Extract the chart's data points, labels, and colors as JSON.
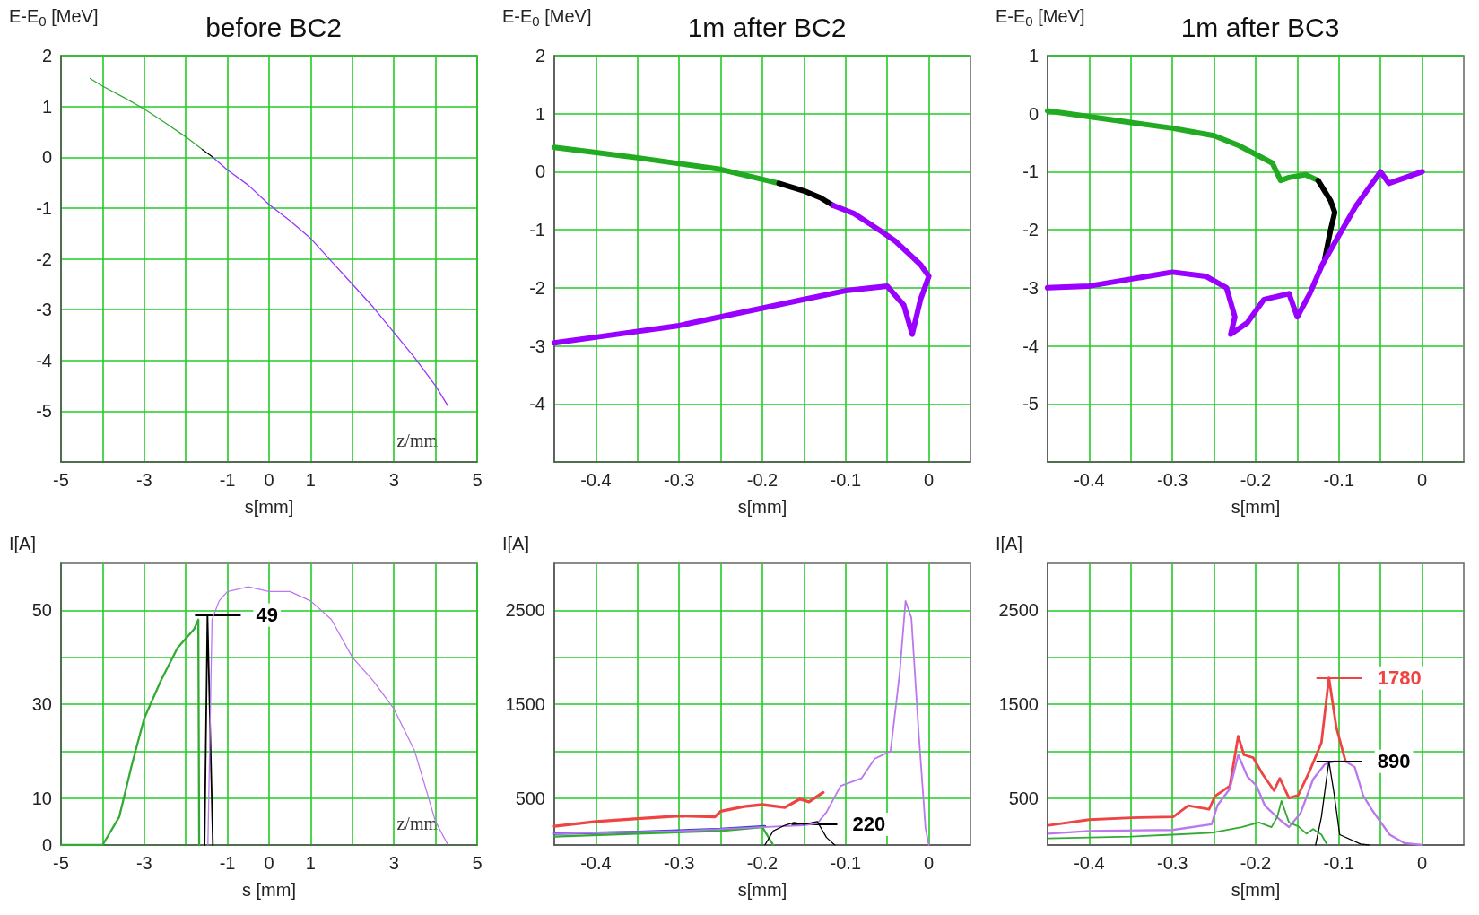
{
  "chart_data": [
    {
      "type": "line",
      "title": "before BC2",
      "xlabel": "s[mm]",
      "ylabel": "E-E$_{0}$ [MeV]",
      "xlim": [
        -5,
        5
      ],
      "ylim": [
        -6,
        2
      ],
      "xticks": [
        -5,
        {
          "value": -4,
          "label": null
        },
        -3,
        {
          "value": -2,
          "label": null
        },
        -1,
        0,
        1,
        {
          "value": 2,
          "label": null
        },
        3,
        {
          "value": 4,
          "label": null
        },
        5
      ],
      "yticks": [
        {
          "value": -6,
          "label": null
        },
        -5,
        -4,
        -3,
        -2,
        -1,
        0,
        1,
        2
      ],
      "grid": true,
      "marker": "none",
      "annotations": [
        "z/mm"
      ],
      "series": [
        {
          "color": "#33aa33",
          "x": [
            -4.3,
            -4,
            -3.5,
            -3,
            -2.5,
            -2,
            -1.6
          ],
          "values": [
            1.55,
            1.4,
            1.18,
            0.95,
            0.68,
            0.4,
            0.15
          ]
        },
        {
          "color": "#000000",
          "x": [
            -1.6,
            -1.35
          ],
          "values": [
            0.15,
            0
          ]
        },
        {
          "color": "#9933ff",
          "x": [
            -1.35,
            -1,
            -0.5,
            0,
            0.5,
            1,
            1.5,
            2,
            2.5,
            3,
            3.5,
            4,
            4.3
          ],
          "values": [
            0,
            -0.25,
            -0.55,
            -0.93,
            -1.25,
            -1.6,
            -2.05,
            -2.5,
            -2.95,
            -3.45,
            -3.95,
            -4.5,
            -4.9
          ]
        }
      ]
    },
    {
      "type": "line",
      "title": "1m after BC2",
      "xlabel": "s[mm]",
      "ylabel": "E-E$_{0}$ [MeV]",
      "xlim": [
        -0.45,
        0.05
      ],
      "ylim": [
        -5,
        2
      ],
      "xticks": [
        -0.4,
        {
          "value": -0.35,
          "label": null
        },
        -0.3,
        {
          "value": -0.25,
          "label": null
        },
        -0.2,
        {
          "value": -0.15,
          "label": null
        },
        -0.1,
        {
          "value": -0.05,
          "label": null
        },
        0
      ],
      "yticks": [
        {
          "value": -5,
          "label": null
        },
        -4,
        -3,
        -2,
        -1,
        0,
        1,
        2
      ],
      "grid": true,
      "marker": "none",
      "series": [
        {
          "color": "#22aa22",
          "x": [
            -0.45,
            -0.4,
            -0.35,
            -0.3,
            -0.25,
            -0.2,
            -0.18
          ],
          "values": [
            0.42,
            0.33,
            0.24,
            0.14,
            0.04,
            -0.13,
            -0.2
          ]
        },
        {
          "color": "#000000",
          "x": [
            -0.18,
            -0.15,
            -0.13,
            -0.115
          ],
          "values": [
            -0.2,
            -0.33,
            -0.45,
            -0.58
          ]
        },
        {
          "color": "#9900ff",
          "x": [
            -0.115,
            -0.09,
            -0.06,
            -0.04,
            -0.025,
            -0.01,
            0,
            -0.01,
            -0.02,
            -0.03,
            -0.05,
            -0.1,
            -0.15,
            -0.2,
            -0.3,
            -0.4,
            -0.45
          ],
          "values": [
            -0.58,
            -0.72,
            -1.0,
            -1.2,
            -1.4,
            -1.6,
            -1.8,
            -2.2,
            -2.8,
            -2.3,
            -1.97,
            -2.05,
            -2.2,
            -2.35,
            -2.65,
            -2.85,
            -2.95
          ]
        }
      ]
    },
    {
      "type": "line",
      "title": "1m after BC3",
      "xlabel": "s[mm]",
      "ylabel": "E-E$_{0}$ [MeV]",
      "xlim": [
        -0.45,
        0.05
      ],
      "ylim": [
        -6,
        1
      ],
      "xticks": [
        -0.4,
        {
          "value": -0.35,
          "label": null
        },
        -0.3,
        {
          "value": -0.25,
          "label": null
        },
        -0.2,
        {
          "value": -0.15,
          "label": null
        },
        -0.1,
        {
          "value": -0.05,
          "label": null
        },
        0
      ],
      "yticks": [
        {
          "value": -6,
          "label": null
        },
        -5,
        -4,
        -3,
        -2,
        -1,
        0,
        1
      ],
      "grid": true,
      "marker": "none",
      "series": [
        {
          "color": "#22aa22",
          "x": [
            -0.45,
            -0.4,
            -0.35,
            -0.3,
            -0.25,
            -0.22,
            -0.2,
            -0.18,
            -0.17,
            -0.16,
            -0.14,
            -0.125
          ],
          "values": [
            0.05,
            -0.05,
            -0.15,
            -0.25,
            -0.38,
            -0.55,
            -0.7,
            -0.85,
            -1.15,
            -1.1,
            -1.05,
            -1.15
          ]
        },
        {
          "color": "#000000",
          "x": [
            -0.125,
            -0.11,
            -0.105,
            -0.11,
            -0.117
          ],
          "values": [
            -1.15,
            -1.5,
            -1.7,
            -2.0,
            -2.5
          ]
        },
        {
          "color": "#9900ff",
          "x": [
            -0.45,
            -0.4,
            -0.35,
            -0.3,
            -0.26,
            -0.235,
            -0.225,
            -0.23,
            -0.21,
            -0.19,
            -0.16,
            -0.15,
            -0.135,
            -0.12,
            -0.1,
            -0.08,
            -0.06,
            -0.05,
            -0.04,
            -0.02,
            0
          ],
          "values": [
            -3.0,
            -2.97,
            -2.85,
            -2.73,
            -2.8,
            -3.0,
            -3.5,
            -3.8,
            -3.6,
            -3.2,
            -3.1,
            -3.5,
            -3.1,
            -2.6,
            -2.1,
            -1.6,
            -1.2,
            -1.0,
            -1.2,
            -1.1,
            -1.0
          ]
        }
      ]
    },
    {
      "type": "line",
      "xlabel": "s [mm]",
      "ylabel": "I[A]",
      "xlim": [
        -5,
        5
      ],
      "ylim": [
        0,
        60
      ],
      "xticks": [
        -5,
        {
          "value": -4,
          "label": null
        },
        -3,
        {
          "value": -2,
          "label": null
        },
        -1,
        0,
        1,
        {
          "value": 2,
          "label": null
        },
        3,
        {
          "value": 4,
          "label": null
        },
        5
      ],
      "yticks": [
        0,
        10,
        {
          "value": 20,
          "label": null
        },
        30,
        {
          "value": 40,
          "label": null
        },
        50
      ],
      "grid": true,
      "marker": "none",
      "annotations": [
        {
          "text": "49",
          "x": -1.48,
          "y": 49
        },
        "z/mm"
      ],
      "series": [
        {
          "color": "#33aa33",
          "x": [
            -5,
            -4,
            -3.6,
            -3.3,
            -3,
            -2.6,
            -2.2,
            -1.8,
            -1.7,
            -1.68
          ],
          "values": [
            0,
            0,
            6,
            17,
            27,
            35,
            42,
            46,
            48,
            0
          ]
        },
        {
          "color": "#000000",
          "x": [
            -1.55,
            -1.48,
            -1.35
          ],
          "values": [
            0,
            49,
            0
          ]
        },
        {
          "color": "#bb77ee",
          "x": [
            -1.47,
            -1.37,
            -1.2,
            -1,
            -0.5,
            0,
            0.5,
            1,
            1.5,
            2,
            2.5,
            3,
            3.5,
            3.8,
            4,
            4.3
          ],
          "values": [
            0,
            48,
            52,
            54,
            55,
            54,
            54,
            52,
            48,
            40,
            35,
            29,
            20,
            11,
            5,
            0
          ]
        }
      ]
    },
    {
      "type": "line",
      "xlabel": "s[mm]",
      "ylabel": "I[A]",
      "xlim": [
        -0.45,
        0.05
      ],
      "ylim": [
        0,
        3000
      ],
      "xticks": [
        -0.4,
        {
          "value": -0.35,
          "label": null
        },
        -0.3,
        {
          "value": -0.25,
          "label": null
        },
        -0.2,
        {
          "value": -0.15,
          "label": null
        },
        -0.1,
        {
          "value": -0.05,
          "label": null
        },
        0
      ],
      "yticks": [
        500,
        {
          "value": 1000,
          "label": null
        },
        1500,
        {
          "value": 2000,
          "label": null
        },
        2500
      ],
      "grid": true,
      "marker": "none",
      "annotations": [
        {
          "text": "220",
          "x": -0.15,
          "y": 220
        }
      ],
      "series": [
        {
          "color": "#ee4444",
          "x": [
            -0.45,
            -0.4,
            -0.35,
            -0.3,
            -0.257,
            -0.25,
            -0.222,
            -0.2,
            -0.173,
            -0.155,
            -0.144,
            -0.127
          ],
          "values": [
            200,
            250,
            280,
            310,
            300,
            360,
            410,
            430,
            400,
            490,
            460,
            560
          ]
        },
        {
          "color": "#3344cc",
          "x": [
            -0.45,
            -0.35,
            -0.25,
            -0.197
          ],
          "values": [
            120,
            140,
            170,
            200
          ]
        },
        {
          "color": "#33aa33",
          "x": [
            -0.45,
            -0.35,
            -0.25,
            -0.2,
            -0.187
          ],
          "values": [
            90,
            120,
            150,
            190,
            0
          ]
        },
        {
          "color": "#bb77ee",
          "x": [
            -0.45,
            -0.4,
            -0.3,
            -0.2,
            -0.15,
            -0.134,
            -0.123,
            -0.106,
            -0.081,
            -0.065,
            -0.046,
            -0.035,
            -0.028,
            -0.021,
            -0.012,
            -0.004,
            0
          ],
          "values": [
            120,
            130,
            150,
            190,
            210,
            230,
            350,
            630,
            710,
            920,
            1000,
            1830,
            2600,
            2420,
            1170,
            180,
            0
          ]
        },
        {
          "color": "#000000",
          "x": [
            -0.197,
            -0.187,
            -0.173,
            -0.162,
            -0.15,
            -0.134,
            -0.123,
            -0.113
          ],
          "values": [
            0,
            150,
            210,
            240,
            220,
            250,
            80,
            0
          ]
        }
      ]
    },
    {
      "type": "line",
      "xlabel": "s[mm]",
      "ylabel": "I[A]",
      "xlim": [
        -0.45,
        0.05
      ],
      "ylim": [
        0,
        3000
      ],
      "xticks": [
        -0.4,
        {
          "value": -0.35,
          "label": null
        },
        -0.3,
        {
          "value": -0.25,
          "label": null
        },
        -0.2,
        {
          "value": -0.15,
          "label": null
        },
        -0.1,
        {
          "value": -0.05,
          "label": null
        },
        0
      ],
      "yticks": [
        500,
        {
          "value": 1000,
          "label": null
        },
        1500,
        {
          "value": 2000,
          "label": null
        },
        2500
      ],
      "grid": true,
      "marker": "none",
      "annotations": [
        {
          "text": "1780",
          "x": -0.112,
          "y": 1780
        },
        {
          "text": "890",
          "x": -0.112,
          "y": 890
        }
      ],
      "series": [
        {
          "color": "#ee4444",
          "x": [
            -0.449,
            -0.4,
            -0.349,
            -0.299,
            -0.281,
            -0.256,
            -0.249,
            -0.231,
            -0.221,
            -0.214,
            -0.203,
            -0.192,
            -0.178,
            -0.171,
            -0.16,
            -0.149,
            -0.135,
            -0.121,
            -0.112,
            -0.103,
            -0.092
          ],
          "values": [
            210,
            270,
            290,
            300,
            420,
            380,
            520,
            630,
            1160,
            960,
            930,
            760,
            580,
            710,
            500,
            530,
            790,
            1090,
            1780,
            1250,
            890
          ]
        },
        {
          "color": "#bb77ee",
          "x": [
            -0.449,
            -0.4,
            -0.3,
            -0.253,
            -0.246,
            -0.231,
            -0.221,
            -0.21,
            -0.199,
            -0.189,
            -0.171,
            -0.16,
            -0.146,
            -0.131,
            -0.117,
            -0.106,
            -0.092,
            -0.081,
            -0.071,
            -0.06,
            -0.039,
            -0.021,
            0
          ],
          "values": [
            120,
            150,
            160,
            220,
            420,
            600,
            960,
            730,
            630,
            420,
            270,
            190,
            340,
            700,
            860,
            890,
            890,
            830,
            530,
            370,
            110,
            20,
            0
          ]
        },
        {
          "color": "#33aa33",
          "x": [
            -0.449,
            -0.35,
            -0.3,
            -0.253,
            -0.217,
            -0.196,
            -0.181,
            -0.174,
            -0.169,
            -0.16,
            -0.149,
            -0.139,
            -0.131,
            -0.121,
            -0.114
          ],
          "values": [
            70,
            90,
            110,
            130,
            190,
            240,
            190,
            300,
            470,
            240,
            200,
            120,
            170,
            110,
            0
          ]
        },
        {
          "color": "#000000",
          "x": [
            -0.128,
            -0.121,
            -0.115,
            -0.112,
            -0.106,
            -0.099,
            -0.074,
            -0.064
          ],
          "values": [
            0,
            300,
            700,
            890,
            560,
            110,
            10,
            0
          ]
        }
      ]
    }
  ]
}
